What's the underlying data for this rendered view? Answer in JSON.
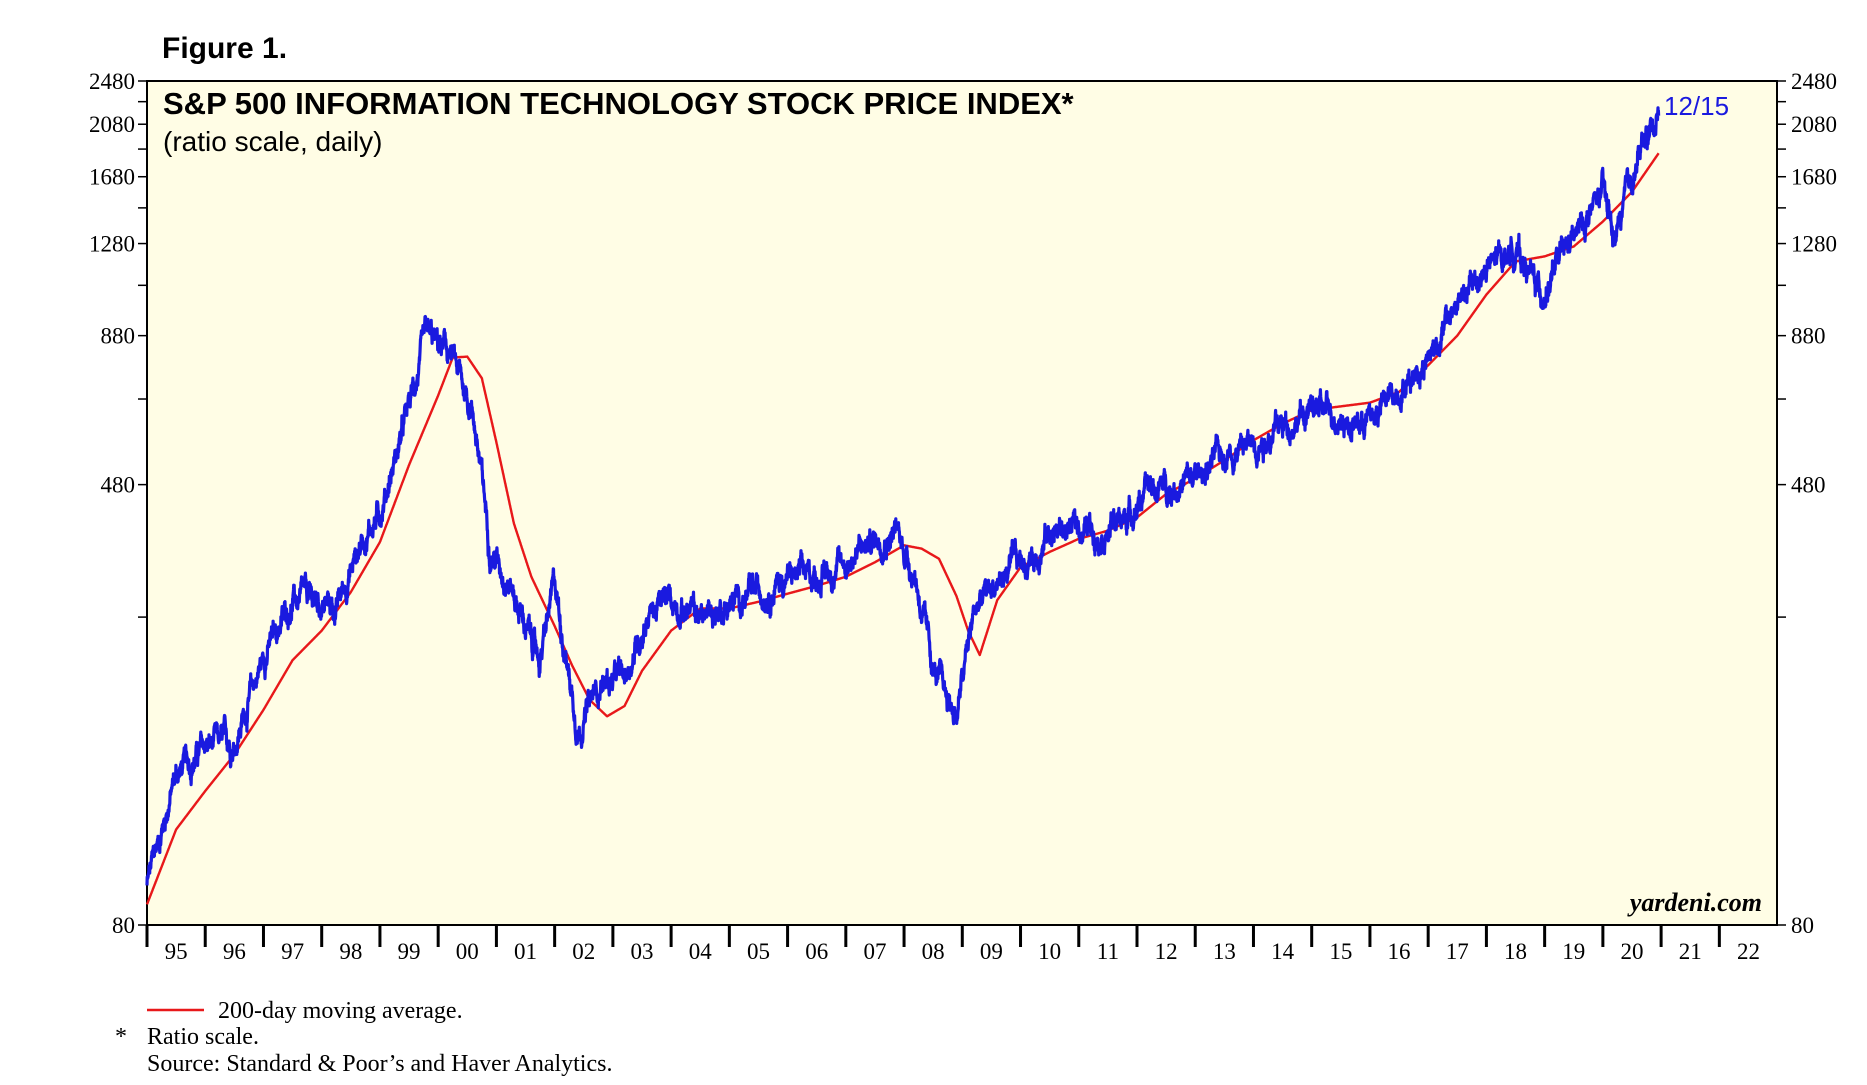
{
  "figure_label": "Figure 1.",
  "watermark": "yardeni.com",
  "last_date_label": "12/15",
  "footnotes": {
    "legend_ma": "200-day moving average.",
    "asterisk": "*",
    "ratio": "Ratio scale.",
    "source": "Source: Standard & Poor’s and Haver Analytics."
  },
  "colors": {
    "background": "#fffde5",
    "index_line": "#1a1adf",
    "ma_line": "#e8181a",
    "frame": "#000000"
  },
  "chart_data": {
    "type": "line",
    "title": "S&P 500 INFORMATION TECHNOLOGY STOCK PRICE INDEX*",
    "subtitle": "(ratio scale, daily)",
    "scale": "log",
    "ylim": [
      80,
      2480
    ],
    "xlim": [
      1995.0,
      2022.99
    ],
    "y_ticks": [
      "80",
      "480",
      "880",
      "1280",
      "1680",
      "2080",
      "2480"
    ],
    "x_ticks": [
      "95",
      "96",
      "97",
      "98",
      "99",
      "00",
      "01",
      "02",
      "03",
      "04",
      "05",
      "06",
      "07",
      "08",
      "09",
      "10",
      "11",
      "12",
      "13",
      "14",
      "15",
      "16",
      "17",
      "18",
      "19",
      "20",
      "21",
      "22"
    ],
    "series": [
      {
        "name": "S&P 500 Information Technology Stock Price Index",
        "color": "#1a1adf",
        "x": [
          1995.0,
          1995.5,
          1996.0,
          1996.5,
          1997.0,
          1997.5,
          1997.9,
          1998.25,
          1998.7,
          1999.0,
          1999.4,
          1999.8,
          2000.2,
          2000.6,
          2000.9,
          2001.2,
          2001.5,
          2001.75,
          2002.0,
          2002.4,
          2002.8,
          2003.2,
          2003.6,
          2004.0,
          2004.5,
          2005.0,
          2005.5,
          2006.0,
          2006.5,
          2007.0,
          2007.5,
          2007.85,
          2008.2,
          2008.5,
          2008.9,
          2009.2,
          2009.5,
          2009.9,
          2010.2,
          2010.5,
          2011.0,
          2011.5,
          2011.8,
          2012.2,
          2012.6,
          2013.0,
          2013.5,
          2014.0,
          2014.5,
          2015.0,
          2015.5,
          2015.7,
          2016.1,
          2016.6,
          2017.0,
          2017.5,
          2018.0,
          2018.5,
          2018.95,
          2019.3,
          2019.7,
          2020.0,
          2020.2,
          2020.6,
          2020.96
        ],
        "values": [
          94,
          148,
          165,
          168,
          238,
          300,
          298,
          290,
          385,
          430,
          600,
          868,
          815,
          650,
          370,
          330,
          270,
          235,
          320,
          178,
          215,
          218,
          285,
          300,
          280,
          295,
          310,
          330,
          330,
          350,
          385,
          400,
          330,
          225,
          188,
          285,
          315,
          345,
          355,
          395,
          405,
          400,
          420,
          470,
          480,
          490,
          550,
          570,
          610,
          650,
          640,
          610,
          640,
          730,
          810,
          1000,
          1150,
          1260,
          1040,
          1210,
          1400,
          1580,
          1290,
          1810,
          2200
        ]
      },
      {
        "name": "200-day moving average",
        "color": "#e8181a",
        "x": [
          1995.0,
          1995.5,
          1996.0,
          1996.5,
          1997.0,
          1997.5,
          1998.0,
          1998.5,
          1999.0,
          1999.5,
          2000.0,
          2000.25,
          2000.5,
          2000.75,
          2001.0,
          2001.3,
          2001.6,
          2002.0,
          2002.3,
          2002.6,
          2002.9,
          2003.2,
          2003.5,
          2004.0,
          2004.5,
          2005.0,
          2005.5,
          2006.0,
          2006.5,
          2007.0,
          2007.5,
          2008.0,
          2008.3,
          2008.6,
          2008.9,
          2009.1,
          2009.3,
          2009.6,
          2010.0,
          2010.5,
          2011.0,
          2011.5,
          2012.0,
          2012.5,
          2013.0,
          2013.5,
          2014.0,
          2014.5,
          2015.0,
          2015.5,
          2016.0,
          2016.5,
          2017.0,
          2017.5,
          2018.0,
          2018.5,
          2019.0,
          2019.5,
          2020.0,
          2020.5,
          2020.96
        ],
        "values": [
          87,
          118,
          138,
          160,
          192,
          235,
          265,
          310,
          380,
          520,
          690,
          805,
          808,
          740,
          570,
          410,
          330,
          270,
          230,
          200,
          187,
          195,
          225,
          265,
          290,
          290,
          298,
          308,
          318,
          330,
          350,
          375,
          370,
          355,
          305,
          265,
          240,
          300,
          343,
          365,
          385,
          398,
          420,
          462,
          492,
          530,
          575,
          615,
          650,
          660,
          670,
          700,
          780,
          880,
          1040,
          1190,
          1215,
          1265,
          1400,
          1580,
          1850
        ]
      }
    ]
  }
}
